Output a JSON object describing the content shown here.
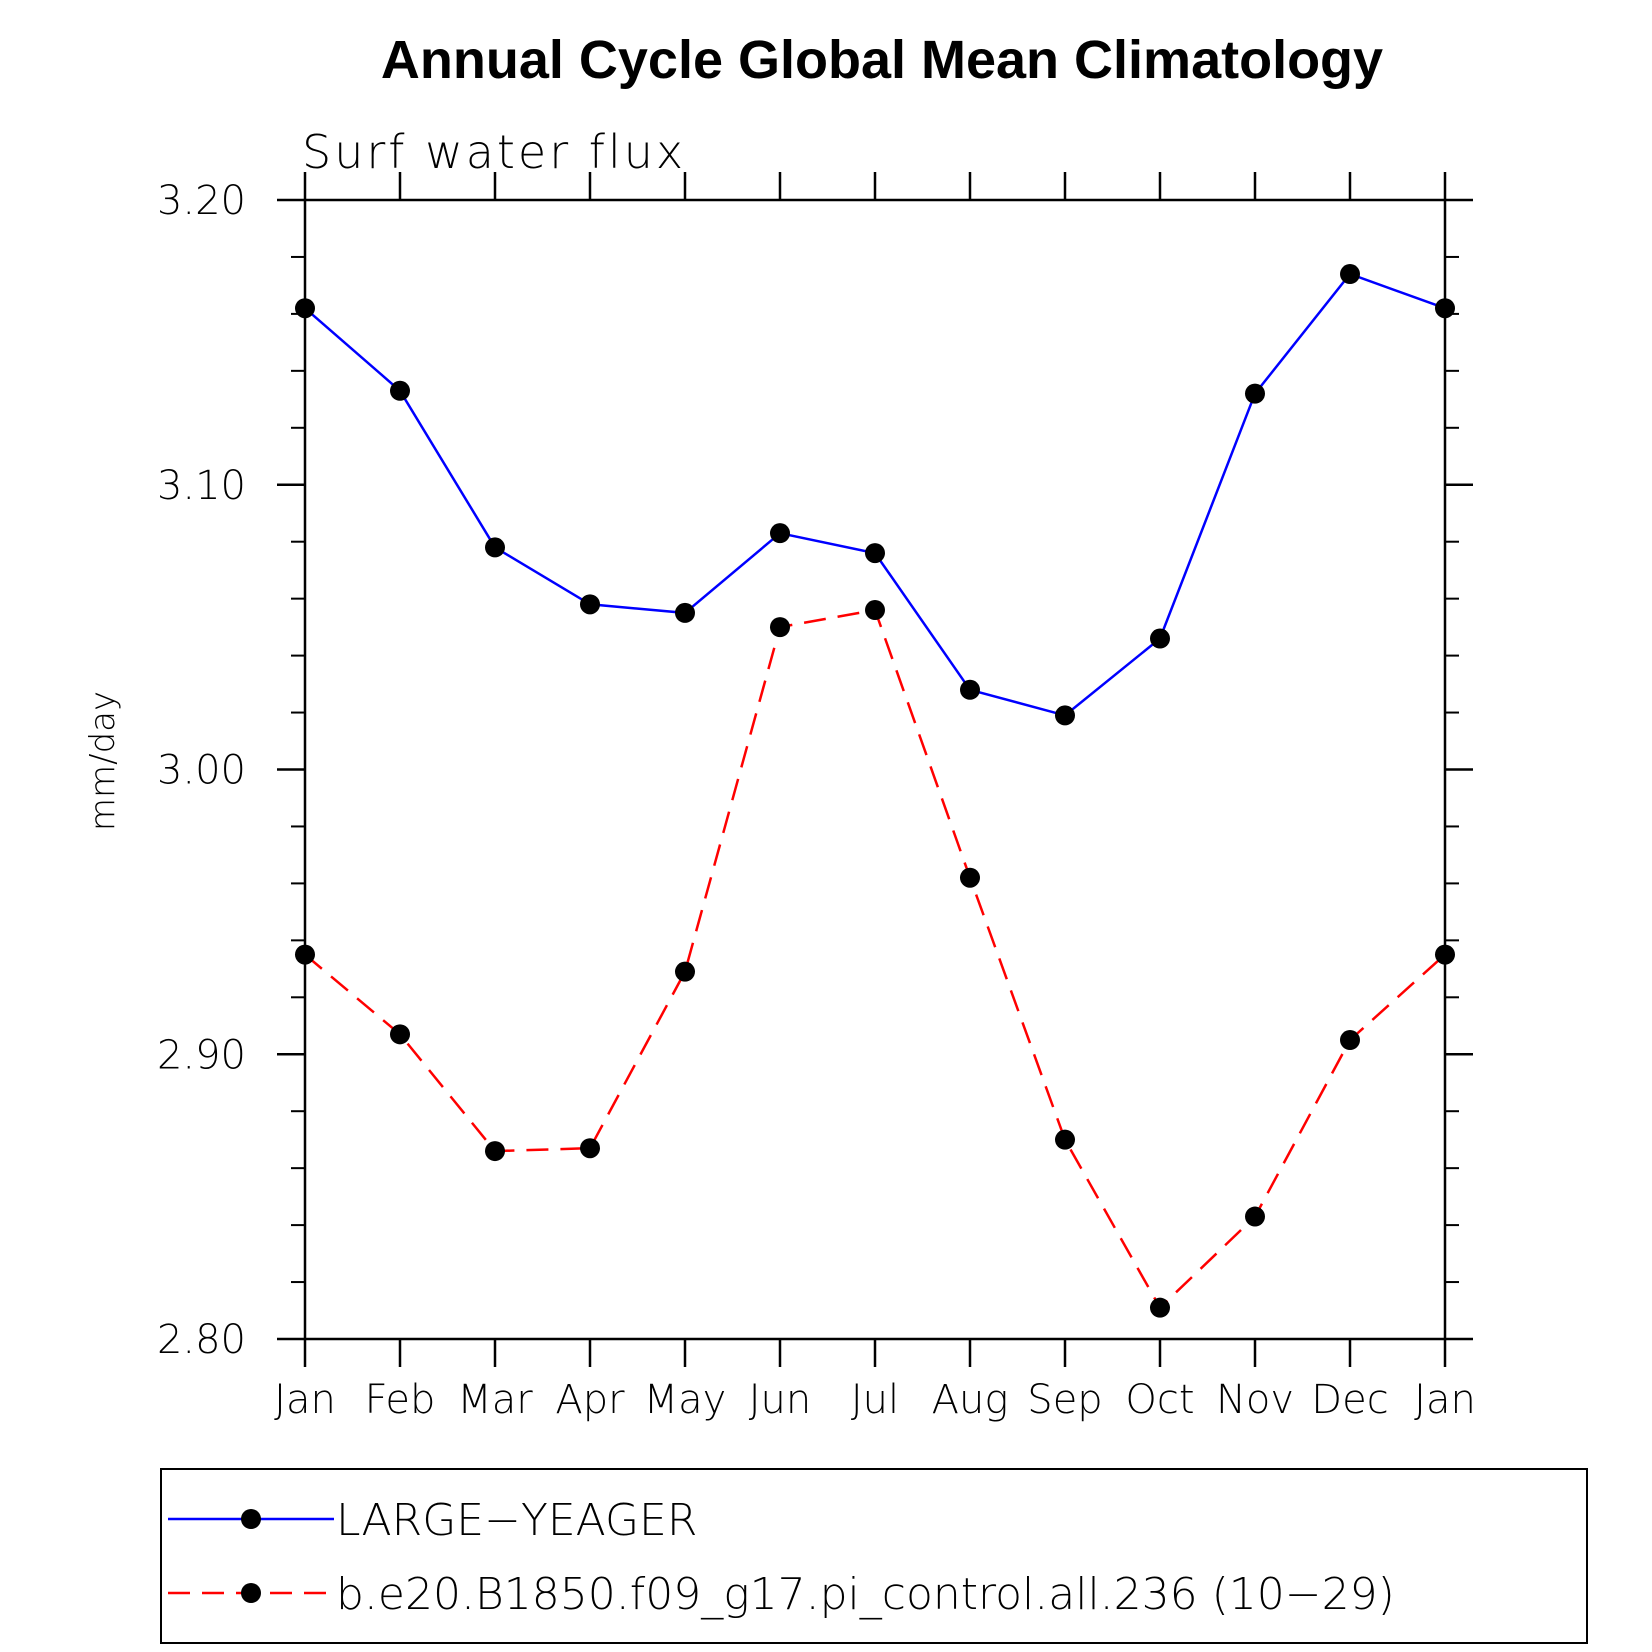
{
  "chart_data": {
    "type": "line",
    "title": "Annual Cycle Global Mean Climatology",
    "subtitle": "Surf water flux",
    "ylabel": "mm/day",
    "xlabel": "",
    "categories": [
      "Jan",
      "Feb",
      "Mar",
      "Apr",
      "May",
      "Jun",
      "Jul",
      "Aug",
      "Sep",
      "Oct",
      "Nov",
      "Dec",
      "Jan"
    ],
    "ylim": [
      2.8,
      3.2
    ],
    "yticks": [
      "2.80",
      "2.90",
      "3.00",
      "3.10",
      "3.20"
    ],
    "grid": false,
    "legend_position": "bottom",
    "series": [
      {
        "name": "LARGE−YEAGER",
        "color": "#0000ff",
        "line_style": "solid",
        "marker": "filled-circle",
        "values": [
          3.162,
          3.133,
          3.078,
          3.058,
          3.055,
          3.083,
          3.076,
          3.028,
          3.019,
          3.046,
          3.132,
          3.174,
          3.162
        ]
      },
      {
        "name": "b.e20.B1850.f09_g17.pi_control.all.236 (10−29)",
        "color": "#ff0000",
        "line_style": "dashed",
        "marker": "filled-circle",
        "values": [
          2.935,
          2.907,
          2.866,
          2.867,
          2.929,
          3.05,
          3.056,
          2.962,
          2.87,
          2.811,
          2.843,
          2.905,
          2.935
        ]
      }
    ]
  }
}
